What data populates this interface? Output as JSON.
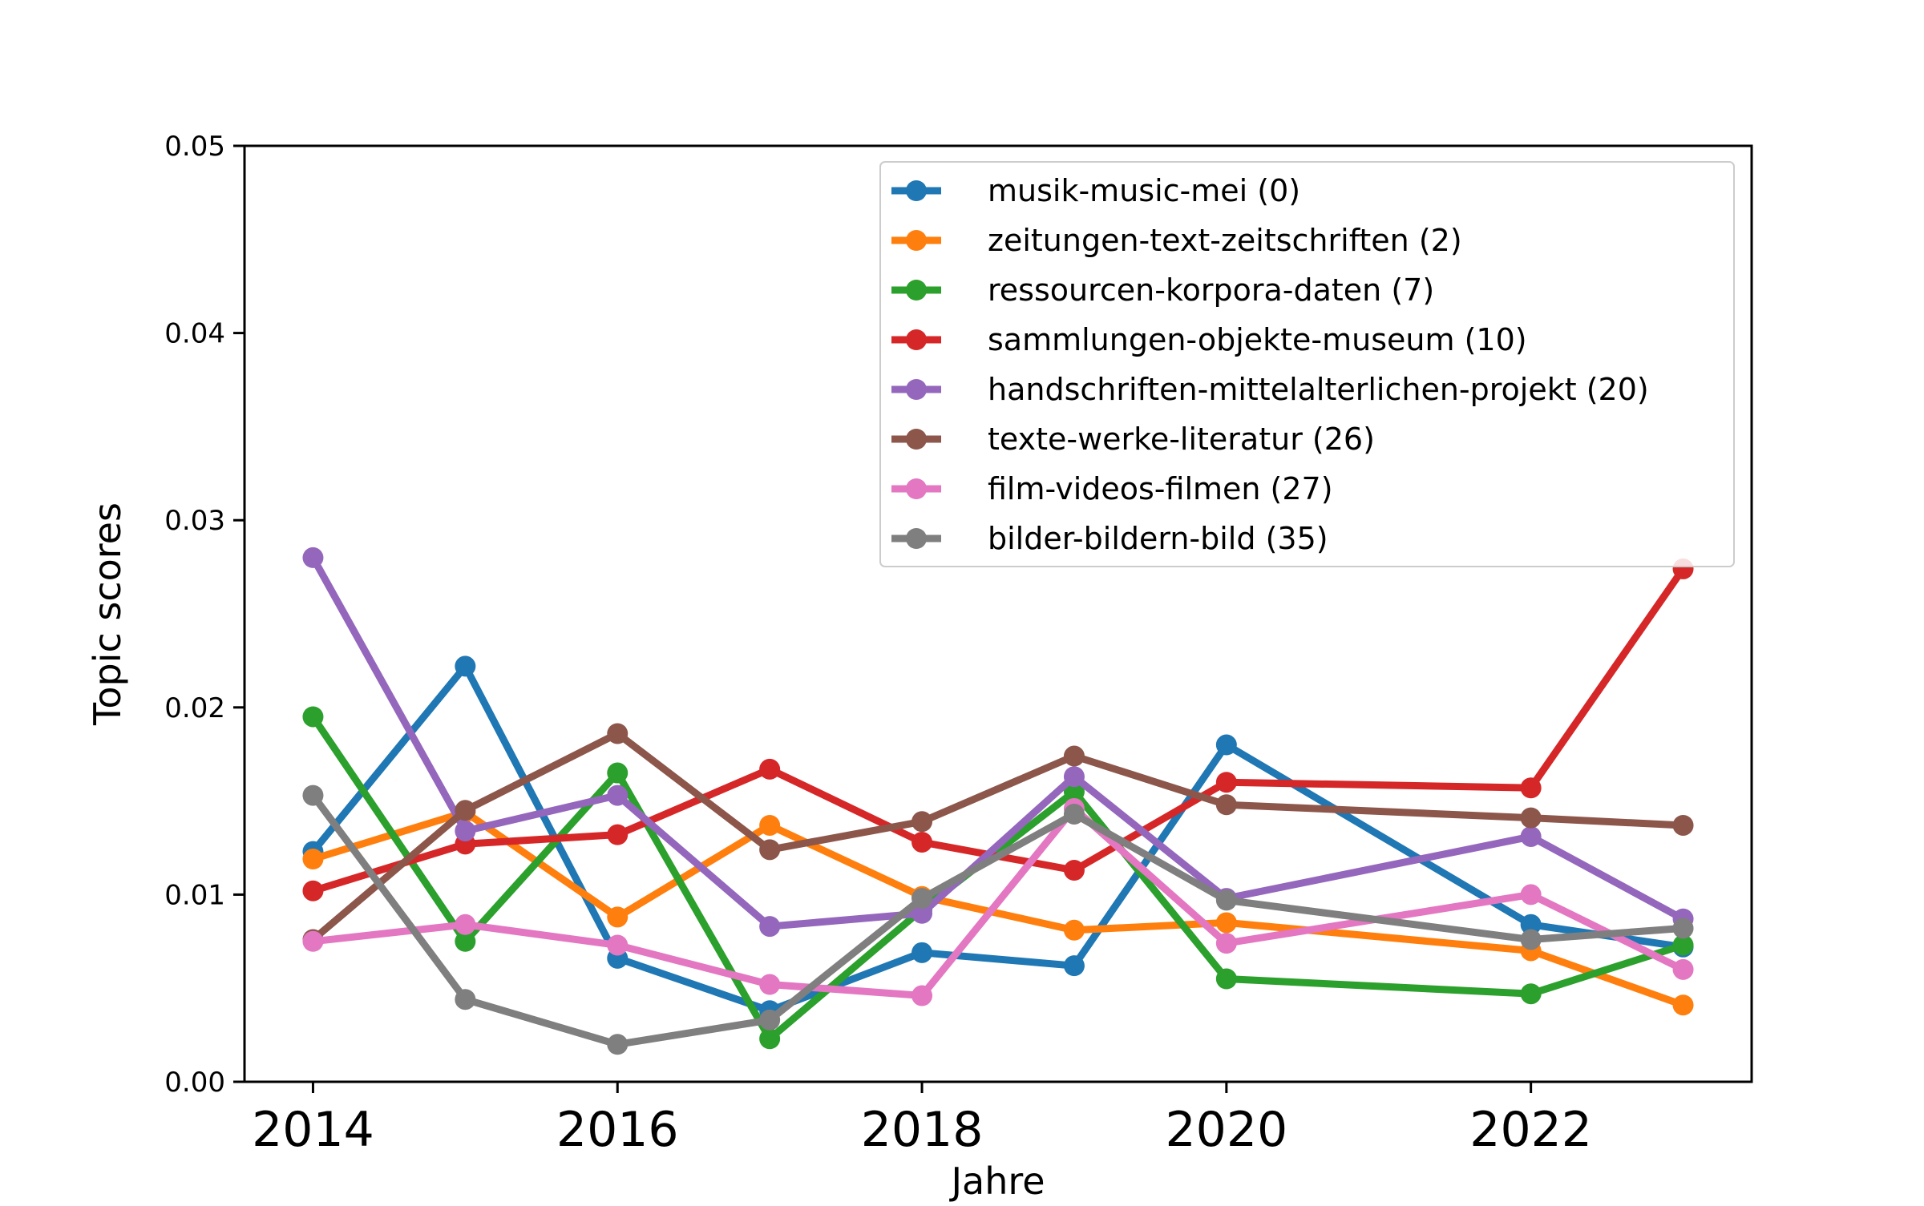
{
  "chart_data": {
    "type": "line",
    "title": "",
    "xlabel": "Jahre",
    "ylabel": "Topic scores",
    "xlim": [
      2013.55,
      2023.45
    ],
    "ylim": [
      0,
      0.05
    ],
    "xticks": [
      2014,
      2016,
      2018,
      2020,
      2022
    ],
    "xtick_labels": [
      "2014",
      "2016",
      "2018",
      "2020",
      "2022"
    ],
    "yticks": [
      0,
      0.01,
      0.02,
      0.03,
      0.04,
      0.05
    ],
    "ytick_labels": [
      "0.00",
      "0.01",
      "0.02",
      "0.03",
      "0.04",
      "0.05"
    ],
    "legend_position": "top-right",
    "grid": false,
    "series": [
      {
        "name": "musik-music-mei (0)",
        "color": "#1f77b4",
        "x": [
          2014,
          2015,
          2016,
          2017,
          2018,
          2019,
          2020,
          2022,
          2023
        ],
        "values": [
          0.0123,
          0.0222,
          0.0066,
          0.0038,
          0.0069,
          0.0062,
          0.018,
          0.0084,
          0.0072
        ]
      },
      {
        "name": "zeitungen-text-zeitschriften (2)",
        "color": "#ff7f0e",
        "x": [
          2014,
          2015,
          2016,
          2017,
          2018,
          2019,
          2020,
          2022,
          2023
        ],
        "values": [
          0.0119,
          0.0144,
          0.0088,
          0.0137,
          0.0099,
          0.0081,
          0.0085,
          0.007,
          0.0041
        ]
      },
      {
        "name": "ressourcen-korpora-daten (7)",
        "color": "#2ca02c",
        "x": [
          2014,
          2015,
          2016,
          2017,
          2018,
          2019,
          2020,
          2022,
          2023
        ],
        "values": [
          0.0195,
          0.0075,
          0.0165,
          0.0023,
          0.0092,
          0.0155,
          0.0055,
          0.0047,
          0.0073
        ]
      },
      {
        "name": "sammlungen-objekte-museum (10)",
        "color": "#d62728",
        "x": [
          2014,
          2015,
          2016,
          2017,
          2018,
          2019,
          2020,
          2022,
          2023
        ],
        "values": [
          0.0102,
          0.0127,
          0.0132,
          0.0167,
          0.0128,
          0.0113,
          0.016,
          0.0157,
          0.0274
        ]
      },
      {
        "name": "handschriften-mittelalterlichen-projekt (20)",
        "color": "#9467bd",
        "x": [
          2014,
          2015,
          2016,
          2017,
          2018,
          2019,
          2020,
          2022,
          2023
        ],
        "values": [
          0.028,
          0.0134,
          0.0153,
          0.0083,
          0.009,
          0.0163,
          0.0098,
          0.0131,
          0.0087
        ]
      },
      {
        "name": "texte-werke-literatur (26)",
        "color": "#8c564b",
        "x": [
          2014,
          2015,
          2016,
          2017,
          2018,
          2019,
          2020,
          2022,
          2023
        ],
        "values": [
          0.0076,
          0.0145,
          0.0186,
          0.0124,
          0.0139,
          0.0174,
          0.0148,
          0.0141,
          0.0137
        ]
      },
      {
        "name": "film-videos-filmen (27)",
        "color": "#e377c2",
        "x": [
          2014,
          2015,
          2016,
          2017,
          2018,
          2019,
          2020,
          2022,
          2023
        ],
        "values": [
          0.0075,
          0.0084,
          0.0073,
          0.0052,
          0.0046,
          0.0146,
          0.0074,
          0.01,
          0.006
        ]
      },
      {
        "name": "bilder-bildern-bild (35)",
        "color": "#7f7f7f",
        "x": [
          2014,
          2015,
          2016,
          2017,
          2018,
          2019,
          2020,
          2022,
          2023
        ],
        "values": [
          0.0153,
          0.0044,
          0.002,
          0.0033,
          0.0098,
          0.0143,
          0.0097,
          0.0076,
          0.0082
        ]
      }
    ]
  }
}
